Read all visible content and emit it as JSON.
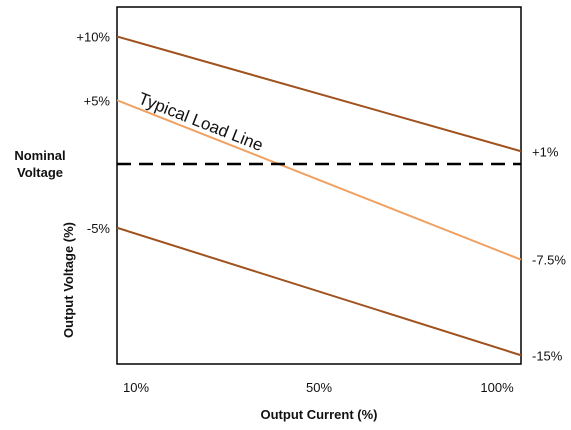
{
  "chart_data": {
    "type": "line",
    "title": "",
    "xlabel": "Output Current (%)",
    "ylabel": "Output Voltage (%)",
    "x_categories": [
      "10%",
      "50%",
      "100%"
    ],
    "x": [
      10,
      100
    ],
    "ylim": [
      -15,
      10
    ],
    "y_tick_labels": [
      {
        "value": 10,
        "label": "+10%"
      },
      {
        "value": 5,
        "label": "+5%"
      },
      {
        "value": 0,
        "label_lines": [
          "Nominal",
          "Voltage"
        ]
      },
      {
        "value": -5,
        "label": "-5%"
      }
    ],
    "right_labels": [
      {
        "value": 1,
        "label": "+1%"
      },
      {
        "value": -7.5,
        "label": "-7.5%"
      },
      {
        "value": -15,
        "label": "-15%"
      }
    ],
    "series": [
      {
        "values": [
          10,
          1
        ],
        "color": "#A0521E",
        "style": "solid"
      },
      {
        "name": "Typical Load Line",
        "values": [
          5,
          -7.5
        ],
        "color": "#F0A060",
        "style": "solid"
      },
      {
        "values": [
          -5,
          -15
        ],
        "color": "#A0521E",
        "style": "solid"
      },
      {
        "values": [
          0,
          0
        ],
        "color": "#000000",
        "style": "dashed"
      }
    ],
    "annotations": [
      {
        "text": "Typical Load Line",
        "x": 14.5,
        "y": 4.8
      }
    ],
    "grid": false,
    "legend": "none"
  }
}
